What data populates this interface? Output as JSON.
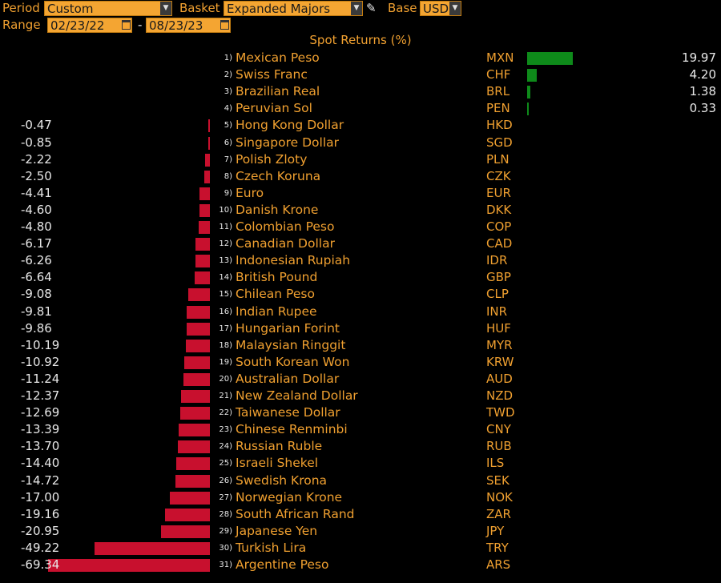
{
  "controls": {
    "period_label": "Period",
    "period_value": "Custom",
    "basket_label": "Basket",
    "basket_value": "Expanded Majors",
    "base_label": "Base",
    "base_value": "USD",
    "range_label": "Range",
    "range_start": "02/23/22",
    "range_sep": "-",
    "range_end": "08/23/23"
  },
  "chart_data": {
    "type": "bar",
    "orientation": "horizontal",
    "title": "Spot Returns (%)",
    "colors": {
      "positive": "#0e8a1a",
      "negative": "#c8102e",
      "label": "#f0a030"
    },
    "rows": [
      {
        "rank": "1)",
        "name": "Mexican Peso",
        "code": "MXN",
        "value": 19.97,
        "label": "19.97"
      },
      {
        "rank": "2)",
        "name": "Swiss Franc",
        "code": "CHF",
        "value": 4.2,
        "label": "4.20"
      },
      {
        "rank": "3)",
        "name": "Brazilian Real",
        "code": "BRL",
        "value": 1.38,
        "label": "1.38"
      },
      {
        "rank": "4)",
        "name": "Peruvian Sol",
        "code": "PEN",
        "value": 0.33,
        "label": "0.33"
      },
      {
        "rank": "5)",
        "name": "Hong Kong Dollar",
        "code": "HKD",
        "value": -0.47,
        "label": "-0.47"
      },
      {
        "rank": "6)",
        "name": "Singapore Dollar",
        "code": "SGD",
        "value": -0.85,
        "label": "-0.85"
      },
      {
        "rank": "7)",
        "name": "Polish Zloty",
        "code": "PLN",
        "value": -2.22,
        "label": "-2.22"
      },
      {
        "rank": "8)",
        "name": "Czech Koruna",
        "code": "CZK",
        "value": -2.5,
        "label": "-2.50"
      },
      {
        "rank": "9)",
        "name": "Euro",
        "code": "EUR",
        "value": -4.41,
        "label": "-4.41"
      },
      {
        "rank": "10)",
        "name": "Danish Krone",
        "code": "DKK",
        "value": -4.6,
        "label": "-4.60"
      },
      {
        "rank": "11)",
        "name": "Colombian Peso",
        "code": "COP",
        "value": -4.8,
        "label": "-4.80"
      },
      {
        "rank": "12)",
        "name": "Canadian Dollar",
        "code": "CAD",
        "value": -6.17,
        "label": "-6.17"
      },
      {
        "rank": "13)",
        "name": "Indonesian Rupiah",
        "code": "IDR",
        "value": -6.26,
        "label": "-6.26"
      },
      {
        "rank": "14)",
        "name": "British Pound",
        "code": "GBP",
        "value": -6.64,
        "label": "-6.64"
      },
      {
        "rank": "15)",
        "name": "Chilean Peso",
        "code": "CLP",
        "value": -9.08,
        "label": "-9.08"
      },
      {
        "rank": "16)",
        "name": "Indian Rupee",
        "code": "INR",
        "value": -9.81,
        "label": "-9.81"
      },
      {
        "rank": "17)",
        "name": "Hungarian Forint",
        "code": "HUF",
        "value": -9.86,
        "label": "-9.86"
      },
      {
        "rank": "18)",
        "name": "Malaysian Ringgit",
        "code": "MYR",
        "value": -10.19,
        "label": "-10.19"
      },
      {
        "rank": "19)",
        "name": "South Korean Won",
        "code": "KRW",
        "value": -10.92,
        "label": "-10.92"
      },
      {
        "rank": "20)",
        "name": "Australian Dollar",
        "code": "AUD",
        "value": -11.24,
        "label": "-11.24"
      },
      {
        "rank": "21)",
        "name": "New Zealand Dollar",
        "code": "NZD",
        "value": -12.37,
        "label": "-12.37"
      },
      {
        "rank": "22)",
        "name": "Taiwanese Dollar",
        "code": "TWD",
        "value": -12.69,
        "label": "-12.69"
      },
      {
        "rank": "23)",
        "name": "Chinese Renminbi",
        "code": "CNY",
        "value": -13.39,
        "label": "-13.39"
      },
      {
        "rank": "24)",
        "name": "Russian Ruble",
        "code": "RUB",
        "value": -13.7,
        "label": "-13.70"
      },
      {
        "rank": "25)",
        "name": "Israeli Shekel",
        "code": "ILS",
        "value": -14.4,
        "label": "-14.40"
      },
      {
        "rank": "26)",
        "name": "Swedish Krona",
        "code": "SEK",
        "value": -14.72,
        "label": "-14.72"
      },
      {
        "rank": "27)",
        "name": "Norwegian Krone",
        "code": "NOK",
        "value": -17.0,
        "label": "-17.00"
      },
      {
        "rank": "28)",
        "name": "South African Rand",
        "code": "ZAR",
        "value": -19.16,
        "label": "-19.16"
      },
      {
        "rank": "29)",
        "name": "Japanese Yen",
        "code": "JPY",
        "value": -20.95,
        "label": "-20.95"
      },
      {
        "rank": "30)",
        "name": "Turkish Lira",
        "code": "TRY",
        "value": -49.22,
        "label": "-49.22"
      },
      {
        "rank": "31)",
        "name": "Argentine Peso",
        "code": "ARS",
        "value": -69.34,
        "label": "-69.34"
      }
    ]
  }
}
